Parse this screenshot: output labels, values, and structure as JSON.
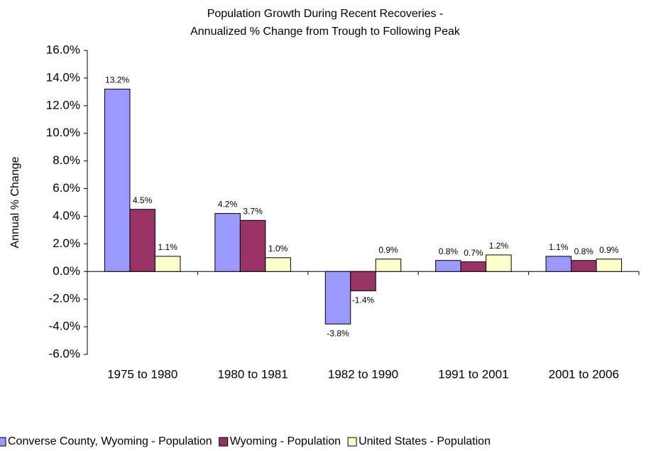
{
  "chart_data": {
    "type": "bar",
    "title": "Population Growth During Recent Recoveries -",
    "subtitle": "Annualized % Change from Trough to Following Peak",
    "y_label": "Annual % Change",
    "categories": [
      "1975 to 1980",
      "1980 to 1981",
      "1982 to 1990",
      "1991 to 2001",
      "2001 to 2006"
    ],
    "series": [
      {
        "name": "Converse County, Wyoming - Population",
        "color": "#9999ff",
        "values": [
          13.2,
          4.2,
          -3.8,
          0.8,
          1.1
        ],
        "value_labels": [
          "13.2%",
          "4.2%",
          "-3.8%",
          "0.8%",
          "1.1%"
        ]
      },
      {
        "name": "Wyoming - Population",
        "color": "#993366",
        "values": [
          4.5,
          3.7,
          -1.4,
          0.7,
          0.8
        ],
        "value_labels": [
          "4.5%",
          "3.7%",
          "-1.4%",
          "0.7%",
          "0.8%"
        ]
      },
      {
        "name": "United States - Population",
        "color": "#ffffcc",
        "values": [
          1.1,
          1.0,
          0.9,
          1.2,
          0.9
        ],
        "value_labels": [
          "1.1%",
          "1.0%",
          "0.9%",
          "1.2%",
          "0.9%"
        ]
      }
    ],
    "ylim": [
      -6,
      16
    ],
    "yticks": [
      {
        "value": -6,
        "label": "-6.0%"
      },
      {
        "value": -4,
        "label": "-4.0%"
      },
      {
        "value": -2,
        "label": "-2.0%"
      },
      {
        "value": 0,
        "label": "0.0%"
      },
      {
        "value": 2,
        "label": "2.0%"
      },
      {
        "value": 4,
        "label": "4.0%"
      },
      {
        "value": 6,
        "label": "6.0%"
      },
      {
        "value": 8,
        "label": "8.0%"
      },
      {
        "value": 10,
        "label": "10.0%"
      },
      {
        "value": 12,
        "label": "12.0%"
      },
      {
        "value": 14,
        "label": "14.0%"
      },
      {
        "value": 16,
        "label": "16.0%"
      }
    ],
    "legend": "bottom"
  }
}
